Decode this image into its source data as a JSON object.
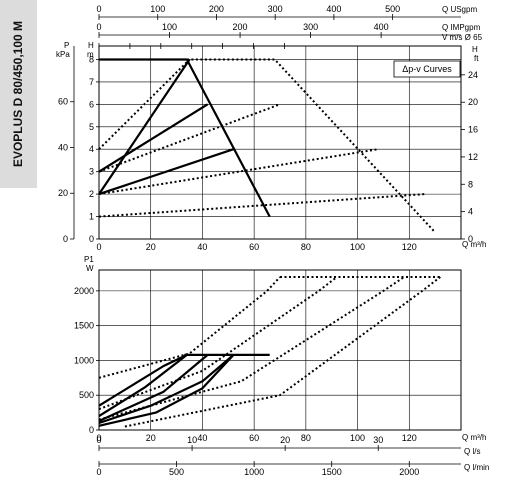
{
  "sidebar": {
    "title": "EVOPLUS D 80/450,100 M"
  },
  "colors": {
    "line": "#000000",
    "grid": "#000000",
    "sidebar_bg": "#dcdcdc",
    "background": "#ffffff"
  },
  "top_scales": [
    {
      "unit": "Q USgpm",
      "ticks": [
        "0",
        "100",
        "200",
        "300",
        "400",
        "500"
      ]
    },
    {
      "unit": "Q IMPgpm",
      "ticks": [
        "0",
        "100",
        "200",
        "300",
        "400"
      ]
    },
    {
      "unit": "V m/s Ø 65",
      "ticks": [
        "0",
        "1",
        "2",
        "3",
        "4",
        "5",
        "6"
      ]
    }
  ],
  "bottom_scales": [
    {
      "unit": "Q l/s",
      "ticks": [
        "0",
        "10",
        "20",
        "30"
      ]
    },
    {
      "unit": "Q l/min",
      "ticks": [
        "0",
        "500",
        "1000",
        "1500",
        "2000"
      ]
    }
  ],
  "chart_data": [
    {
      "type": "line",
      "title": "",
      "legend_box": "Δp-v Curves",
      "xlabel": "Q m³/h",
      "ylabel_left_outer": "P kPa",
      "ylabel_left_inner": "H m",
      "ylabel_right": "H ft",
      "xlim": [
        0,
        140
      ],
      "ylim": [
        0,
        8.6
      ],
      "x_ticks": [
        "0",
        "20",
        "40",
        "60",
        "80",
        "100",
        "120"
      ],
      "y_ticks_m": [
        "0",
        "1",
        "2",
        "3",
        "4",
        "5",
        "6",
        "7",
        "8"
      ],
      "y_ticks_kpa": [
        "0",
        "20",
        "40",
        "60"
      ],
      "y_ticks_ft": [
        "0",
        "4",
        "8",
        "12",
        "16",
        "20",
        "24"
      ],
      "grid": true,
      "series": [
        {
          "style": "solid",
          "points": [
            [
              0,
              2
            ],
            [
              35,
              8
            ]
          ]
        },
        {
          "style": "solid",
          "points": [
            [
              0,
              3
            ],
            [
              42,
              6
            ]
          ]
        },
        {
          "style": "solid",
          "points": [
            [
              0,
              2
            ],
            [
              52,
              4
            ]
          ]
        },
        {
          "style": "solid",
          "points": [
            [
              0,
              8
            ],
            [
              34,
              8
            ],
            [
              66,
              1
            ]
          ]
        },
        {
          "style": "dotted",
          "points": [
            [
              0,
              4
            ],
            [
              35,
              8
            ]
          ]
        },
        {
          "style": "dotted",
          "points": [
            [
              34,
              8
            ],
            [
              68,
              8
            ],
            [
              130,
              0.3
            ]
          ]
        },
        {
          "style": "dotted",
          "points": [
            [
              0,
              3
            ],
            [
              70,
              6
            ]
          ]
        },
        {
          "style": "dotted",
          "points": [
            [
              0,
              2
            ],
            [
              108,
              4
            ]
          ]
        },
        {
          "style": "dotted",
          "points": [
            [
              0,
              1
            ],
            [
              126,
              2
            ]
          ]
        }
      ]
    },
    {
      "type": "line",
      "title": "",
      "xlabel": "Q m³/h",
      "ylabel": "P1 W",
      "xlim": [
        0,
        140
      ],
      "ylim": [
        0,
        2300
      ],
      "x_ticks": [
        "0",
        "20",
        "40",
        "60",
        "80",
        "100",
        "120"
      ],
      "y_ticks": [
        "0",
        "500",
        "1000",
        "1500",
        "2000"
      ],
      "grid": true,
      "series": [
        {
          "style": "solid",
          "points": [
            [
              0,
              350
            ],
            [
              25,
              920
            ],
            [
              34,
              1080
            ]
          ]
        },
        {
          "style": "solid",
          "points": [
            [
              0,
              200
            ],
            [
              18,
              620
            ],
            [
              34,
              1080
            ]
          ]
        },
        {
          "style": "solid",
          "points": [
            [
              0,
              130
            ],
            [
              25,
              550
            ],
            [
              42,
              1080
            ]
          ]
        },
        {
          "style": "solid",
          "points": [
            [
              0,
              100
            ],
            [
              20,
              350
            ],
            [
              40,
              700
            ],
            [
              52,
              1080
            ]
          ]
        },
        {
          "style": "solid",
          "points": [
            [
              0,
              60
            ],
            [
              22,
              250
            ],
            [
              40,
              600
            ],
            [
              52,
              1080
            ]
          ]
        },
        {
          "style": "solid",
          "points": [
            [
              33,
              1080
            ],
            [
              66,
              1080
            ]
          ]
        },
        {
          "style": "dotted",
          "points": [
            [
              0,
              750
            ],
            [
              35,
              1100
            ],
            [
              65,
              2000
            ],
            [
              70,
              2200
            ]
          ]
        },
        {
          "style": "dotted",
          "points": [
            [
              0,
              300
            ],
            [
              40,
              850
            ],
            [
              85,
              2000
            ],
            [
              92,
              2200
            ]
          ]
        },
        {
          "style": "dotted",
          "points": [
            [
              0,
              150
            ],
            [
              55,
              700
            ],
            [
              110,
              2000
            ],
            [
              118,
              2200
            ]
          ]
        },
        {
          "style": "dotted",
          "points": [
            [
              10,
              50
            ],
            [
              70,
              500
            ],
            [
              125,
              2000
            ],
            [
              132,
              2200
            ]
          ]
        },
        {
          "style": "dotted",
          "points": [
            [
              70,
              2200
            ],
            [
              132,
              2200
            ]
          ]
        }
      ]
    }
  ]
}
